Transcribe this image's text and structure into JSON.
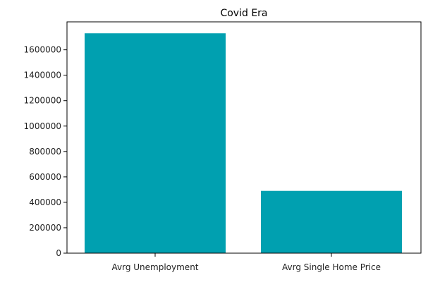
{
  "chart_data": {
    "type": "bar",
    "title": "Covid Era",
    "xlabel": "",
    "ylabel": "",
    "categories": [
      "Avrg Unemployment",
      "Avrg Single Home Price"
    ],
    "values": [
      1730000,
      490000
    ],
    "ylim": [
      0,
      1820000
    ],
    "yticks": [
      0,
      200000,
      400000,
      600000,
      800000,
      1000000,
      1200000,
      1400000,
      1600000
    ],
    "ytick_labels": [
      "0",
      "200000",
      "400000",
      "600000",
      "800000",
      "1000000",
      "1200000",
      "1400000",
      "1600000"
    ],
    "bar_color": "#00a0b0",
    "grid": false,
    "legend": "none"
  }
}
